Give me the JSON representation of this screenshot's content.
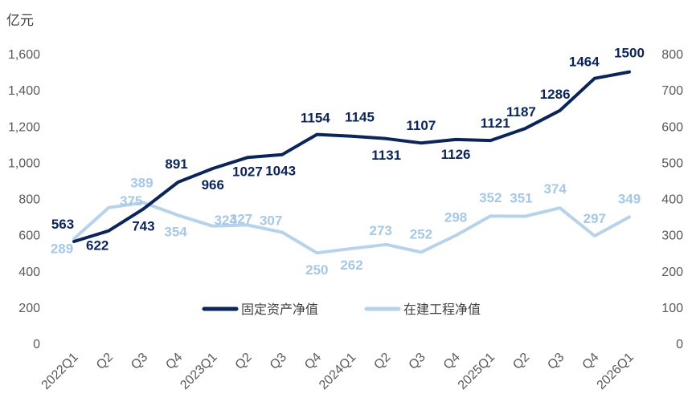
{
  "chart_data": {
    "type": "line",
    "unit_label": "亿元",
    "categories": [
      "2022Q1",
      "Q2",
      "Q3",
      "Q4",
      "2023Q1",
      "Q2",
      "Q3",
      "Q4",
      "2024Q1",
      "Q2",
      "Q3",
      "Q4",
      "2025Q1",
      "Q2",
      "Q3",
      "Q4",
      "2026Q1"
    ],
    "series": [
      {
        "name": "固定资产净值",
        "axis": "left",
        "color": "#0b2559",
        "values": [
          563,
          622,
          743,
          891,
          966,
          1027,
          1043,
          1154,
          1145,
          1131,
          1107,
          1126,
          1121,
          1187,
          1286,
          1464,
          1500
        ]
      },
      {
        "name": "在建工程净值",
        "axis": "right",
        "color": "#b7d3ec",
        "values": [
          289,
          375,
          389,
          354,
          324,
          327,
          307,
          250,
          262,
          273,
          252,
          298,
          352,
          351,
          374,
          297,
          349
        ]
      }
    ],
    "left_axis": {
      "ylim": [
        0,
        1600
      ],
      "ticks": [
        "0",
        "200",
        "400",
        "600",
        "800",
        "1,000",
        "1,200",
        "1,400",
        "1,600"
      ]
    },
    "right_axis": {
      "ylim": [
        0,
        800
      ],
      "ticks": [
        "0",
        "100",
        "200",
        "300",
        "400",
        "500",
        "600",
        "700",
        "800"
      ]
    },
    "grid": false,
    "legend": "center"
  }
}
